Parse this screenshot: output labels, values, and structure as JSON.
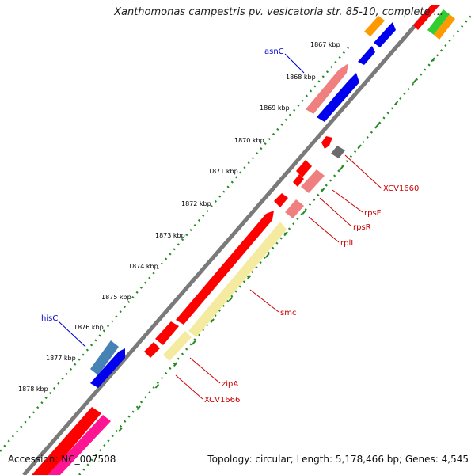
{
  "title": "Xanthomonas campestris pv. vesicatoria str. 85-10, complete ...",
  "footer": {
    "accession": "Accession: NC_007508",
    "summary": "Topology: circular; Length: 5,178,466 bp; Genes: 4,545"
  },
  "ticks": [
    "1867 kbp",
    "1868 kbp",
    "1869 kbp",
    "1870 kbp",
    "1871 kbp",
    "1872 kbp",
    "1873 kbp",
    "1874 kbp",
    "1875 kbp",
    "1876 kbp",
    "1877 kbp",
    "1878 kbp"
  ],
  "gene_labels": [
    {
      "text": "asnC",
      "color": "#0000cc"
    },
    {
      "text": "hisC",
      "color": "#0000cc"
    },
    {
      "text": "XCV1660",
      "color": "#cc0000"
    },
    {
      "text": "rpsF",
      "color": "#cc0000"
    },
    {
      "text": "rpsR",
      "color": "#cc0000"
    },
    {
      "text": "rplI",
      "color": "#cc0000"
    },
    {
      "text": "smc",
      "color": "#cc0000"
    },
    {
      "text": "zipA",
      "color": "#cc0000"
    },
    {
      "text": "XCV1666",
      "color": "#cc0000"
    }
  ],
  "colors": {
    "backbone": "#808080",
    "dots": "#228b22",
    "red": "#ff0000",
    "pink": "#f08080",
    "blue": "#0000ee",
    "steelblue": "#4682b4",
    "yellow": "#f5eba0",
    "orange": "#ff9900",
    "green": "#33cc33",
    "gray": "#707070",
    "magenta": "#ff1493"
  }
}
